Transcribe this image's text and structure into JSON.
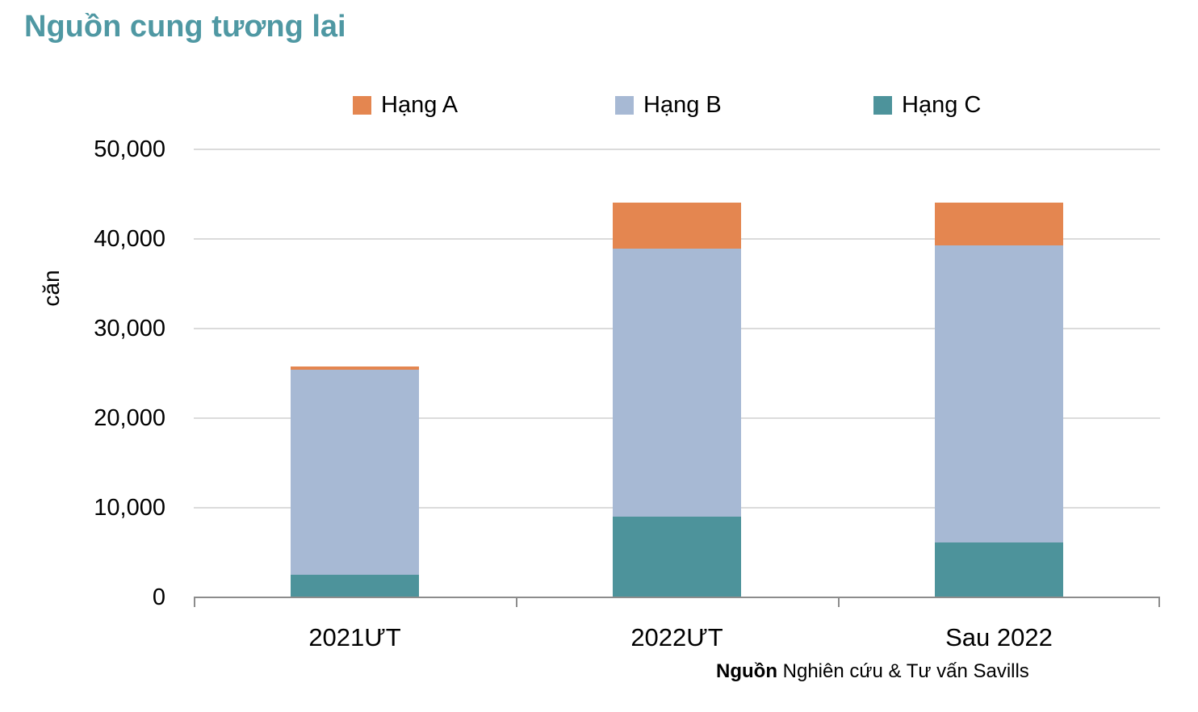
{
  "title": {
    "text": "Nguồn cung tương lai",
    "color": "#4F98A3"
  },
  "chart_data": {
    "type": "bar",
    "stacked": true,
    "title": "Nguồn cung tương lai",
    "ylabel": "căn",
    "xlabel": "",
    "ylim": [
      0,
      50000
    ],
    "categories": [
      "2021ƯT",
      "2022ƯT",
      "Sau 2022"
    ],
    "series": [
      {
        "name": "Hạng A",
        "color": "#E48650",
        "values": [
          400,
          5200,
          4800
        ]
      },
      {
        "name": "Hạng B",
        "color": "#A7B9D4",
        "values": [
          22900,
          29900,
          33200
        ]
      },
      {
        "name": "Hạng C",
        "color": "#4D939B",
        "values": [
          2400,
          8900,
          6000
        ]
      }
    ],
    "stack_order_bottom_to_top": [
      "Hạng C",
      "Hạng B",
      "Hạng A"
    ],
    "totals": [
      25700,
      44000,
      44000
    ],
    "yticks": {
      "values": [
        0,
        10000,
        20000,
        30000,
        40000,
        50000
      ],
      "labels": [
        "0",
        "10,000",
        "20,000",
        "30,000",
        "40,000",
        "50,000"
      ]
    },
    "gridlines": true,
    "legend_position": "top"
  },
  "source": {
    "label": "Nguồn",
    "text": " Nghiên cứu & Tư vấn Savills"
  },
  "colors": {
    "gridline": "#DBDBDB",
    "axis": "#8C8C8C",
    "text": "#000000"
  }
}
